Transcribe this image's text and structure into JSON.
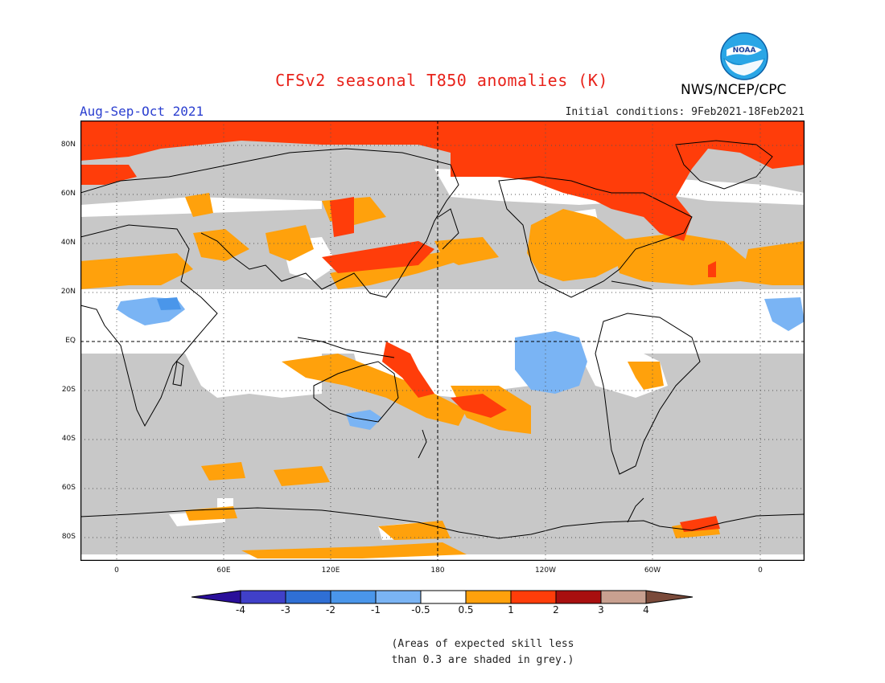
{
  "title": "CFSv2 seasonal T850 anomalies (K)",
  "period": "Aug-Sep-Oct 2021",
  "initial_conditions": "Initial conditions: 9Feb2021-18Feb2021",
  "agency": "NWS/NCEP/CPC",
  "logo_text": "NOAA",
  "lat_ticks": [
    "80N",
    "60N",
    "40N",
    "20N",
    "EQ",
    "20S",
    "40S",
    "60S",
    "80S"
  ],
  "lon_ticks": [
    "0",
    "60E",
    "120E",
    "180",
    "120W",
    "60W",
    "0"
  ],
  "colorbar": {
    "labels": [
      "-4",
      "-3",
      "-2",
      "-1",
      "-0.5",
      "0.5",
      "1",
      "2",
      "3",
      "4"
    ],
    "colors": [
      "#2a0f9a",
      "#4040c8",
      "#2f6fd4",
      "#4a96ea",
      "#7ab4f4",
      "#ffffff",
      "#ffa10c",
      "#ff3d0a",
      "#a80f0f",
      "#c8a090",
      "#7a4a3a"
    ]
  },
  "legend_colors": {
    "grey_low_skill": "#c8c8c8",
    "warm_0_5_1": "#ffa10c",
    "warm_1_2": "#ff3d0a",
    "cool_m1_m0_5": "#7ab4f4",
    "cool_m2_m1": "#4a96ea"
  },
  "footnote": "(Areas of expected skill less\nthan 0.3 are shaded in grey.)"
}
